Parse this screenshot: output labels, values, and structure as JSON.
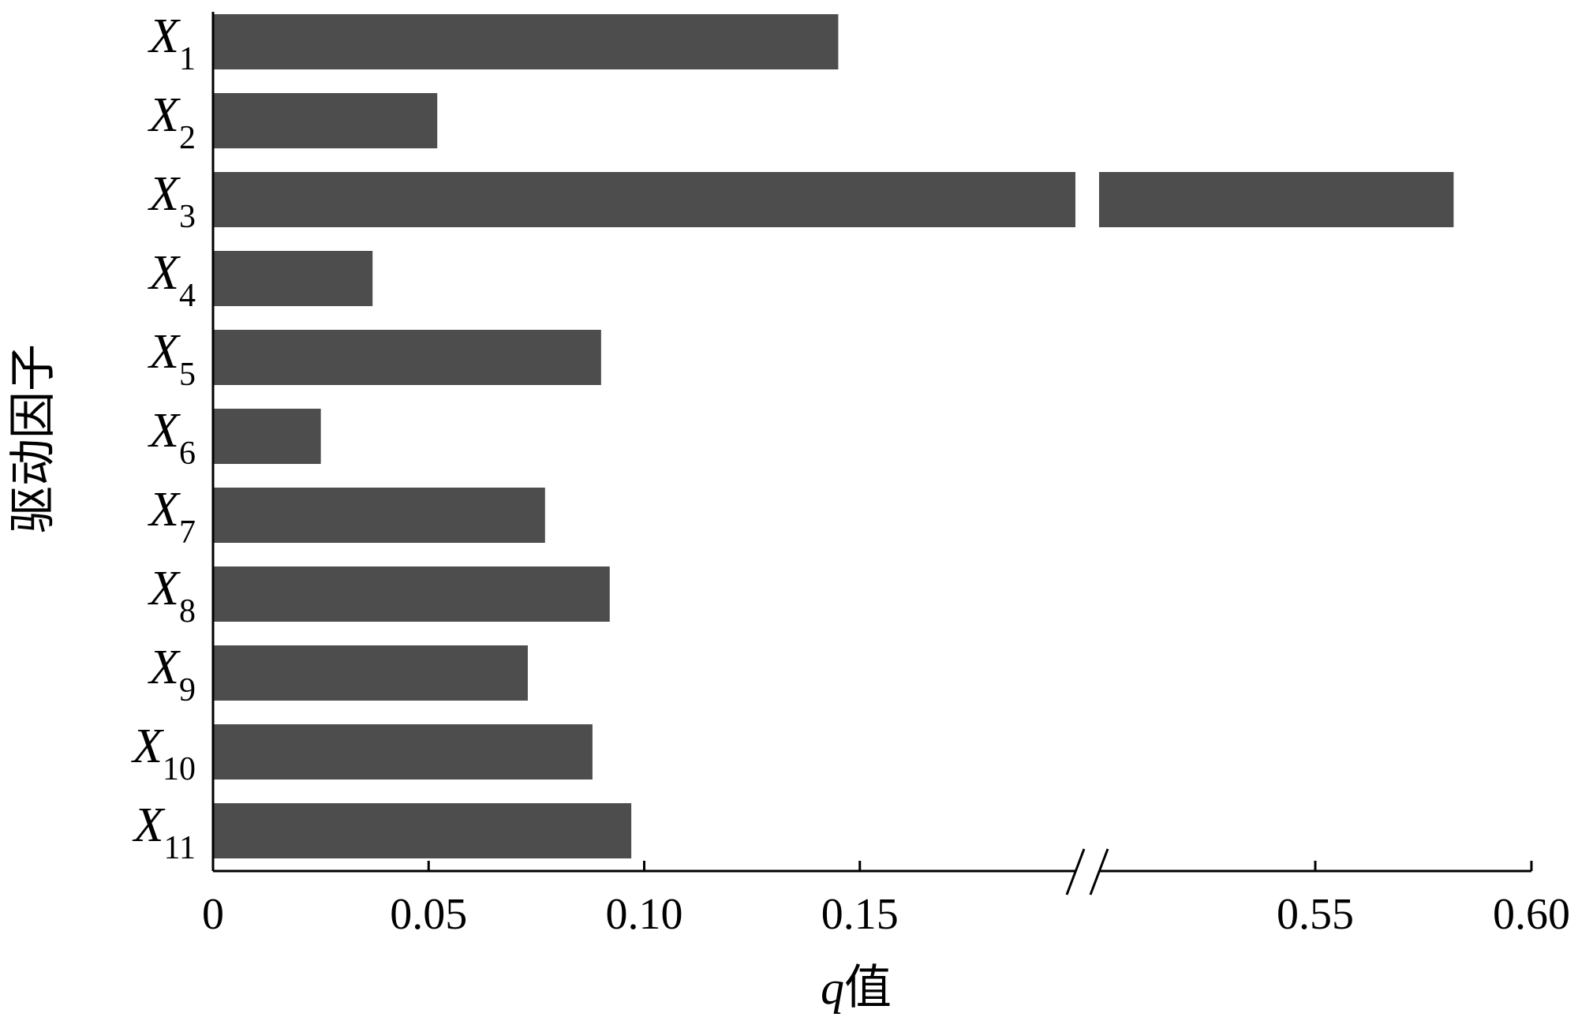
{
  "chart_data": {
    "type": "bar",
    "orientation": "horizontal",
    "categories": [
      {
        "base": "X",
        "sub": "1"
      },
      {
        "base": "X",
        "sub": "2"
      },
      {
        "base": "X",
        "sub": "3"
      },
      {
        "base": "X",
        "sub": "4"
      },
      {
        "base": "X",
        "sub": "5"
      },
      {
        "base": "X",
        "sub": "6"
      },
      {
        "base": "X",
        "sub": "7"
      },
      {
        "base": "X",
        "sub": "8"
      },
      {
        "base": "X",
        "sub": "9"
      },
      {
        "base": "X",
        "sub": "10"
      },
      {
        "base": "X",
        "sub": "11"
      }
    ],
    "values": [
      0.145,
      0.052,
      0.582,
      0.037,
      0.09,
      0.025,
      0.077,
      0.092,
      0.073,
      0.088,
      0.097
    ],
    "xlabel_italic": "q",
    "xlabel_rest": "值",
    "ylabel": "驱动因子",
    "xlim": [
      0,
      0.6
    ],
    "axis_break": [
      0.2,
      0.5
    ],
    "xticks": [
      {
        "value": 0,
        "label": "0"
      },
      {
        "value": 0.05,
        "label": "0.05"
      },
      {
        "value": 0.1,
        "label": "0.10"
      },
      {
        "value": 0.15,
        "label": "0.15"
      },
      {
        "value": 0.55,
        "label": "0.55"
      },
      {
        "value": 0.6,
        "label": "0.60"
      }
    ],
    "bar_color": "#4d4d4d",
    "grid": false,
    "legend": "none"
  }
}
